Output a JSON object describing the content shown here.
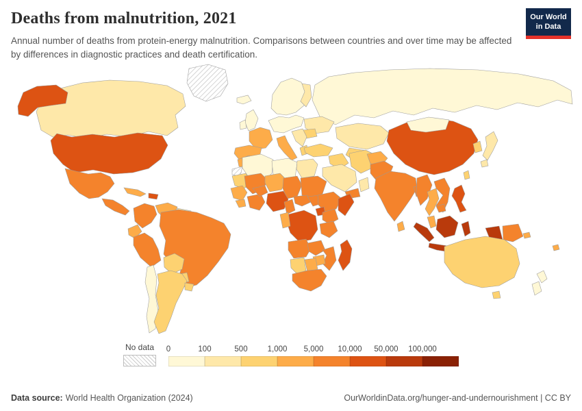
{
  "header": {
    "title": "Deaths from malnutrition, 2021",
    "subtitle": "Annual number of deaths from protein-energy malnutrition. Comparisons between countries and over time may be affected by differences in diagnostic practices and death certification."
  },
  "logo": {
    "line1": "Our World",
    "line2": "in Data",
    "bg": "#12294b",
    "accent": "#e5322a"
  },
  "legend": {
    "no_data_label": "No data",
    "labels": [
      "0",
      "100",
      "500",
      "1,000",
      "5,000",
      "10,000",
      "50,000",
      "100,000"
    ],
    "colors": [
      "#fff8d6",
      "#fee8a9",
      "#fdd271",
      "#fdac49",
      "#f4832c",
      "#dd5313",
      "#b93a0c",
      "#8a2105"
    ]
  },
  "footer": {
    "source_label": "Data source:",
    "source_text": "World Health Organization (2024)",
    "credit_text": "OurWorldinData.org/hunger-and-undernourishment | CC BY"
  },
  "chart_data": {
    "type": "heatmap",
    "variant": "world-choropleth",
    "title": "Deaths from malnutrition, 2021",
    "unit": "annual deaths from protein-energy malnutrition",
    "legend_position": "bottom",
    "bins": [
      {
        "bin": 1,
        "range": "0–100"
      },
      {
        "bin": 2,
        "range": "100–500"
      },
      {
        "bin": 3,
        "range": "500–1,000"
      },
      {
        "bin": 4,
        "range": "1,000–5,000"
      },
      {
        "bin": 5,
        "range": "5,000–10,000"
      },
      {
        "bin": 6,
        "range": "10,000–50,000"
      },
      {
        "bin": 7,
        "range": "50,000–100,000"
      },
      {
        "bin": 8,
        "range": "100,000+"
      },
      {
        "bin": "no-data",
        "range": "No data"
      }
    ],
    "countries": [
      {
        "id": "greenland",
        "name": "Greenland",
        "bin": "no-data"
      },
      {
        "id": "western-sahara",
        "name": "Western Sahara",
        "bin": "no-data"
      },
      {
        "id": "canada",
        "name": "Canada",
        "bin": 2
      },
      {
        "id": "united-states",
        "name": "United States",
        "bin": 6
      },
      {
        "id": "mexico",
        "name": "Mexico",
        "bin": 5
      },
      {
        "id": "central-america",
        "name": "Central America",
        "bin": 5
      },
      {
        "id": "cuba",
        "name": "Cuba",
        "bin": 4
      },
      {
        "id": "haiti",
        "name": "Haiti/Dominican Republic",
        "bin": 6
      },
      {
        "id": "colombia",
        "name": "Colombia",
        "bin": 5
      },
      {
        "id": "venezuela",
        "name": "Venezuela",
        "bin": 4
      },
      {
        "id": "guyanas",
        "name": "Guyana/Suriname",
        "bin": 2
      },
      {
        "id": "ecuador",
        "name": "Ecuador",
        "bin": 4
      },
      {
        "id": "peru",
        "name": "Peru",
        "bin": 5
      },
      {
        "id": "brazil",
        "name": "Brazil",
        "bin": 5
      },
      {
        "id": "bolivia",
        "name": "Bolivia",
        "bin": 3
      },
      {
        "id": "paraguay",
        "name": "Paraguay",
        "bin": 3
      },
      {
        "id": "chile",
        "name": "Chile",
        "bin": 1
      },
      {
        "id": "argentina",
        "name": "Argentina",
        "bin": 3
      },
      {
        "id": "uruguay",
        "name": "Uruguay",
        "bin": 3
      },
      {
        "id": "iceland",
        "name": "Iceland",
        "bin": 1
      },
      {
        "id": "united-kingdom",
        "name": "United Kingdom",
        "bin": 1
      },
      {
        "id": "ireland",
        "name": "Ireland",
        "bin": 1
      },
      {
        "id": "scandinavia",
        "name": "Norway/Sweden",
        "bin": 1
      },
      {
        "id": "finland",
        "name": "Finland",
        "bin": 2
      },
      {
        "id": "central-europe",
        "name": "Germany/Central Europe",
        "bin": 1
      },
      {
        "id": "ukraine",
        "name": "Ukraine/Belarus",
        "bin": 2
      },
      {
        "id": "romania",
        "name": "Romania",
        "bin": 3
      },
      {
        "id": "balkans",
        "name": "Balkans",
        "bin": 2
      },
      {
        "id": "greece",
        "name": "Greece",
        "bin": 3
      },
      {
        "id": "france",
        "name": "France",
        "bin": 4
      },
      {
        "id": "spain",
        "name": "Spain/Portugal",
        "bin": 4
      },
      {
        "id": "italy",
        "name": "Italy",
        "bin": 4
      },
      {
        "id": "russia",
        "name": "Russia",
        "bin": 1
      },
      {
        "id": "kazakhstan",
        "name": "Kazakhstan",
        "bin": 2
      },
      {
        "id": "central-asia",
        "name": "Uzbekistan/Turkmenistan",
        "bin": 3
      },
      {
        "id": "turkey",
        "name": "Turkey",
        "bin": 3
      },
      {
        "id": "syria-iraq",
        "name": "Syria/Iraq",
        "bin": 3
      },
      {
        "id": "iran",
        "name": "Iran",
        "bin": 3
      },
      {
        "id": "saudi-arabia",
        "name": "Saudi Arabia",
        "bin": 2
      },
      {
        "id": "yemen",
        "name": "Yemen",
        "bin": 5
      },
      {
        "id": "oman",
        "name": "Oman",
        "bin": 2
      },
      {
        "id": "afghanistan",
        "name": "Afghanistan",
        "bin": 4
      },
      {
        "id": "pakistan",
        "name": "Pakistan",
        "bin": 5
      },
      {
        "id": "india",
        "name": "India",
        "bin": 5
      },
      {
        "id": "bangladesh",
        "name": "Bangladesh",
        "bin": 5
      },
      {
        "id": "sri-lanka",
        "name": "Sri Lanka",
        "bin": 4
      },
      {
        "id": "china",
        "name": "China",
        "bin": 6
      },
      {
        "id": "mongolia",
        "name": "Mongolia",
        "bin": 1
      },
      {
        "id": "korea",
        "name": "Korea",
        "bin": 3
      },
      {
        "id": "japan",
        "name": "Japan",
        "bin": 2
      },
      {
        "id": "taiwan",
        "name": "Taiwan",
        "bin": 3
      },
      {
        "id": "myanmar",
        "name": "Myanmar",
        "bin": 5
      },
      {
        "id": "thailand",
        "name": "Thailand",
        "bin": 4
      },
      {
        "id": "vietnam-laos",
        "name": "Vietnam/Laos",
        "bin": 5
      },
      {
        "id": "cambodia",
        "name": "Cambodia",
        "bin": 5
      },
      {
        "id": "malaysia",
        "name": "Malaysia",
        "bin": 4
      },
      {
        "id": "philippines",
        "name": "Philippines",
        "bin": 6
      },
      {
        "id": "indonesia",
        "name": "Indonesia",
        "bin": 7
      },
      {
        "id": "papua-new-guinea",
        "name": "Papua New Guinea",
        "bin": 5
      },
      {
        "id": "australia",
        "name": "Australia",
        "bin": 3
      },
      {
        "id": "new-zealand",
        "name": "New Zealand",
        "bin": 1
      },
      {
        "id": "solomon-islands",
        "name": "Solomon Islands",
        "bin": 4
      },
      {
        "id": "fiji",
        "name": "Fiji",
        "bin": 4
      },
      {
        "id": "morocco",
        "name": "Morocco",
        "bin": 4
      },
      {
        "id": "algeria",
        "name": "Algeria",
        "bin": 1
      },
      {
        "id": "libya",
        "name": "Libya",
        "bin": 1
      },
      {
        "id": "egypt",
        "name": "Egypt",
        "bin": 2
      },
      {
        "id": "mauritania",
        "name": "Mauritania",
        "bin": 3
      },
      {
        "id": "mali",
        "name": "Mali",
        "bin": 5
      },
      {
        "id": "niger",
        "name": "Niger",
        "bin": 4
      },
      {
        "id": "chad",
        "name": "Chad",
        "bin": 5
      },
      {
        "id": "sudan",
        "name": "Sudan",
        "bin": 5
      },
      {
        "id": "senegal-guinea",
        "name": "Senegal/Guinea",
        "bin": 4
      },
      {
        "id": "sierra-leone-liberia",
        "name": "Sierra Leone/Liberia",
        "bin": 4
      },
      {
        "id": "cote-divoire-ghana",
        "name": "Côte d'Ivoire/Ghana",
        "bin": 5
      },
      {
        "id": "burkina-faso",
        "name": "Burkina Faso",
        "bin": 5
      },
      {
        "id": "nigeria",
        "name": "Nigeria",
        "bin": 6
      },
      {
        "id": "cameroon",
        "name": "Cameroon",
        "bin": 5
      },
      {
        "id": "central-african-republic",
        "name": "Central African Republic",
        "bin": 5
      },
      {
        "id": "south-sudan",
        "name": "South Sudan",
        "bin": 5
      },
      {
        "id": "ethiopia",
        "name": "Ethiopia",
        "bin": 5
      },
      {
        "id": "somalia",
        "name": "Somalia",
        "bin": 6
      },
      {
        "id": "kenya",
        "name": "Kenya",
        "bin": 5
      },
      {
        "id": "uganda",
        "name": "Uganda",
        "bin": 6
      },
      {
        "id": "dr-congo",
        "name": "Democratic Republic of Congo",
        "bin": 6
      },
      {
        "id": "gabon-congo",
        "name": "Gabon/Congo",
        "bin": 4
      },
      {
        "id": "tanzania",
        "name": "Tanzania",
        "bin": 5
      },
      {
        "id": "angola",
        "name": "Angola",
        "bin": 5
      },
      {
        "id": "zambia",
        "name": "Zambia",
        "bin": 5
      },
      {
        "id": "mozambique",
        "name": "Mozambique",
        "bin": 5
      },
      {
        "id": "zimbabwe",
        "name": "Zimbabwe",
        "bin": 4
      },
      {
        "id": "namibia",
        "name": "Namibia",
        "bin": 3
      },
      {
        "id": "botswana",
        "name": "Botswana",
        "bin": 4
      },
      {
        "id": "south-africa",
        "name": "South Africa",
        "bin": 5
      },
      {
        "id": "madagascar",
        "name": "Madagascar",
        "bin": 6
      }
    ]
  }
}
